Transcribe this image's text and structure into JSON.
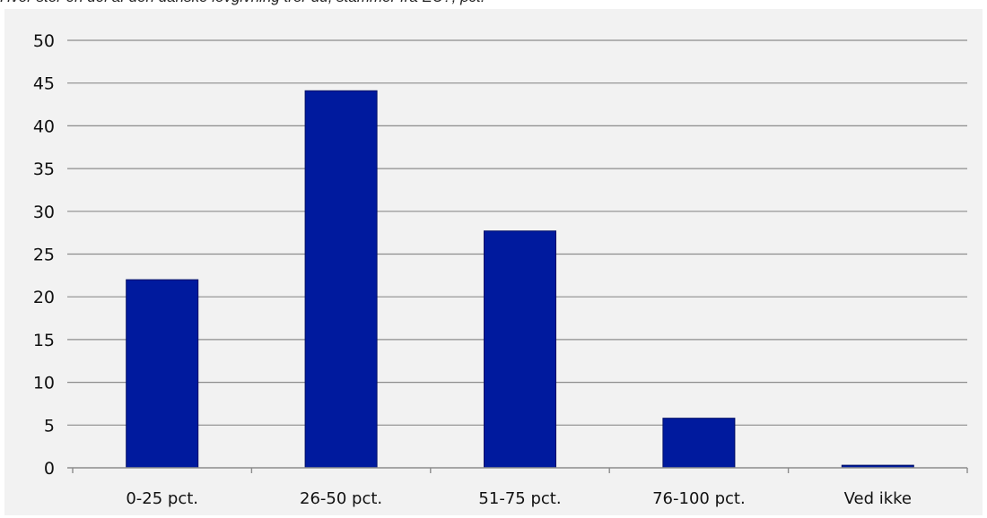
{
  "chart_data": {
    "type": "bar",
    "title": "Hvor stor en del af den danske lovgivning tror du, stammer fra EU?, pct.",
    "xlabel": "",
    "ylabel": "",
    "categories": [
      "0-25 pct.",
      "26-50 pct.",
      "51-75 pct.",
      "76-100 pct.",
      "Ved ikke"
    ],
    "values": [
      22,
      44.1,
      27.7,
      5.8,
      0.3
    ],
    "ylim": [
      0,
      50
    ],
    "yticks": [
      0,
      5,
      10,
      15,
      20,
      25,
      30,
      35,
      40,
      45,
      50
    ],
    "grid": true,
    "legend": "none",
    "colors": {
      "bar": "#001a9e",
      "bar_edge": "#000e66",
      "grid": "#8c8c8c",
      "axis": "#8c8c8c",
      "background": "#f2f2f2",
      "text": "#111111"
    }
  }
}
